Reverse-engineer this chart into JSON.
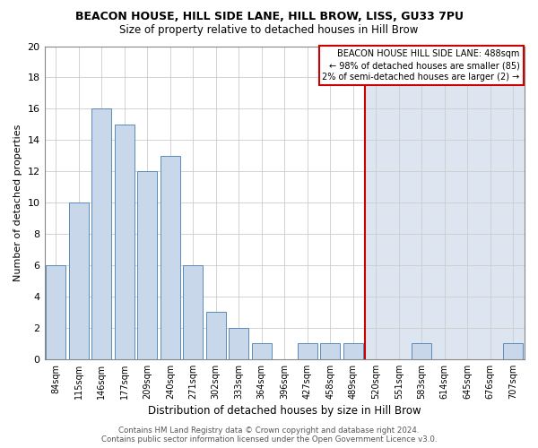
{
  "title": "BEACON HOUSE, HILL SIDE LANE, HILL BROW, LISS, GU33 7PU",
  "subtitle": "Size of property relative to detached houses in Hill Brow",
  "xlabel": "Distribution of detached houses by size in Hill Brow",
  "ylabel": "Number of detached properties",
  "bar_color_left": "#c8d8ea",
  "bar_color_right": "#c8d8ea",
  "bar_edge_color": "#5a8ab8",
  "background_color": "#ffffff",
  "plot_bg_left": "#ffffff",
  "plot_bg_right": "#e8eef8",
  "grid_color": "#cccccc",
  "categories": [
    "84sqm",
    "115sqm",
    "146sqm",
    "177sqm",
    "209sqm",
    "240sqm",
    "271sqm",
    "302sqm",
    "333sqm",
    "364sqm",
    "396sqm",
    "427sqm",
    "458sqm",
    "489sqm",
    "520sqm",
    "551sqm",
    "583sqm",
    "614sqm",
    "645sqm",
    "676sqm",
    "707sqm"
  ],
  "values": [
    6,
    10,
    16,
    15,
    12,
    13,
    6,
    3,
    2,
    1,
    0,
    1,
    1,
    1,
    0,
    0,
    1,
    0,
    0,
    0,
    1
  ],
  "red_line_index": 13,
  "ylim": [
    0,
    20
  ],
  "yticks": [
    0,
    2,
    4,
    6,
    8,
    10,
    12,
    14,
    16,
    18,
    20
  ],
  "legend_title": "BEACON HOUSE HILL SIDE LANE: 488sqm",
  "legend_line1": "← 98% of detached houses are smaller (85)",
  "legend_line2": "2% of semi-detached houses are larger (2) →",
  "legend_box_color": "#ffffff",
  "legend_border_color": "#cc0000",
  "red_line_color": "#cc0000",
  "footer": "Contains HM Land Registry data © Crown copyright and database right 2024.\nContains public sector information licensed under the Open Government Licence v3.0."
}
